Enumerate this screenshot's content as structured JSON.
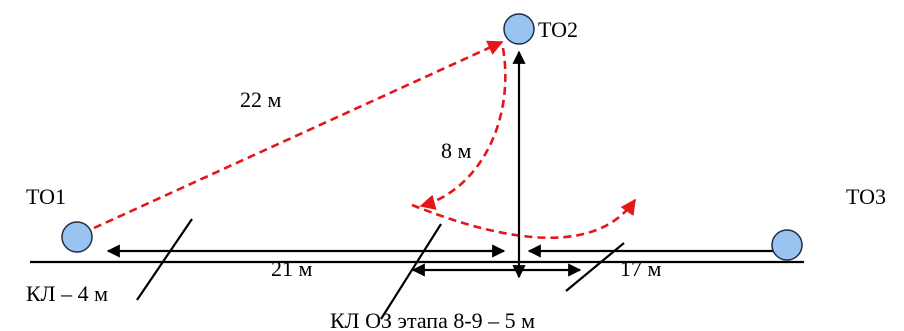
{
  "nodes": {
    "to1": "ТО1",
    "to2": "ТО2",
    "to3": "ТО3"
  },
  "distances": {
    "to1_to2": "22 м",
    "to2_vertical": "8 м",
    "to1_to_branch": "21 м",
    "branch_to_to3": "17 м"
  },
  "cables": {
    "kl_main": "КЛ – 4 м",
    "kl_oz": "КЛ ОЗ этапа 8-9 – 5 м"
  },
  "colors": {
    "node_fill": "#99c4f2",
    "node_stroke": "#1f2d45",
    "route": "#e5161a",
    "line": "#000000"
  }
}
